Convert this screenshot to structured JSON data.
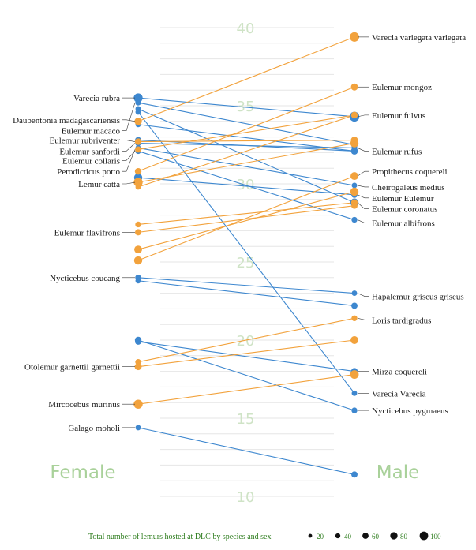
{
  "chart_data": {
    "type": "slope",
    "title": "Total number of lemurs hosted at DLC by species and sex",
    "xlabel": "",
    "ylabel": "",
    "ylim": [
      10,
      40
    ],
    "yticks": [
      10,
      15,
      20,
      25,
      30,
      35,
      40
    ],
    "categories": [
      "Female",
      "Male"
    ],
    "colors": {
      "blue": "#3d87cf",
      "orange": "#f2a23c"
    },
    "size_legend": [
      20,
      40,
      60,
      80,
      100
    ],
    "female_labels": [
      {
        "text": "Varecia rubra",
        "y": 35.5
      },
      {
        "text": "Daubentonia madagascariensis",
        "y": 34.1
      },
      {
        "text": "Eulemur macaco",
        "y": 33.4
      },
      {
        "text": "Eulemur rubriventer",
        "y": 32.8
      },
      {
        "text": "Eulemur sanfordi",
        "y": 32.1
      },
      {
        "text": "Eulemur collaris",
        "y": 31.5
      },
      {
        "text": "Perodicticus potto",
        "y": 30.8
      },
      {
        "text": "Lemur catta",
        "y": 30.0
      },
      {
        "text": "Eulemur flavifrons",
        "y": 26.9
      },
      {
        "text": "Nycticebus coucang",
        "y": 24.0
      },
      {
        "text": "Otolemur garnettii garnettii",
        "y": 18.3
      },
      {
        "text": "Mircocebus murinus",
        "y": 15.9
      },
      {
        "text": "Galago moholi",
        "y": 14.4
      }
    ],
    "male_labels": [
      {
        "text": "Varecia variegata variegata",
        "y": 39.4
      },
      {
        "text": "Eulemur mongoz",
        "y": 36.2
      },
      {
        "text": "Eulemur fulvus",
        "y": 34.4
      },
      {
        "text": "Eulemur rufus",
        "y": 32.1
      },
      {
        "text": "Propithecus coquereli",
        "y": 30.8
      },
      {
        "text": "Cheirogaleus medius",
        "y": 29.8
      },
      {
        "text": "Eulemur Eulemur",
        "y": 29.1
      },
      {
        "text": "Eulemur coronatus",
        "y": 28.4
      },
      {
        "text": "Eulemur albifrons",
        "y": 27.5
      },
      {
        "text": "Hapalemur griseus griseus",
        "y": 22.8
      },
      {
        "text": "Loris tardigradus",
        "y": 21.3
      },
      {
        "text": "Mirza coquereli",
        "y": 18.0
      },
      {
        "text": "Varecia Varecia",
        "y": 16.6
      },
      {
        "text": "Nycticebus pygmaeus",
        "y": 15.5
      }
    ],
    "series": [
      {
        "color": "blue",
        "female": 35.5,
        "male": 34.3,
        "fsize": 70,
        "msize": 80
      },
      {
        "color": "blue",
        "female": 35.2,
        "male": 32.5,
        "fsize": 30,
        "msize": 40
      },
      {
        "color": "blue",
        "female": 34.8,
        "male": 28.8,
        "fsize": 25,
        "msize": 60
      },
      {
        "color": "blue",
        "female": 34.6,
        "male": 16.6,
        "fsize": 25,
        "msize": 25
      },
      {
        "color": "blue",
        "female": 33.8,
        "male": 32.1,
        "fsize": 25,
        "msize": 35
      },
      {
        "color": "blue",
        "female": 32.8,
        "male": 32.1,
        "fsize": 35,
        "msize": 45
      },
      {
        "color": "blue",
        "female": 32.6,
        "male": 32.3,
        "fsize": 30,
        "msize": 30
      },
      {
        "color": "blue",
        "female": 32.3,
        "male": 29.9,
        "fsize": 25,
        "msize": 25
      },
      {
        "color": "blue",
        "female": 32.1,
        "male": 27.7,
        "fsize": 30,
        "msize": 30
      },
      {
        "color": "blue",
        "female": 30.4,
        "male": 29.3,
        "fsize": 60,
        "msize": 35
      },
      {
        "color": "blue",
        "female": 24.0,
        "male": 23.0,
        "fsize": 30,
        "msize": 25
      },
      {
        "color": "blue",
        "female": 23.8,
        "male": 22.2,
        "fsize": 25,
        "msize": 35
      },
      {
        "color": "blue",
        "female": 20.0,
        "male": 15.5,
        "fsize": 40,
        "msize": 30
      },
      {
        "color": "blue",
        "female": 19.9,
        "male": 18.0,
        "fsize": 35,
        "msize": 40
      },
      {
        "color": "blue",
        "female": 14.4,
        "male": 11.4,
        "fsize": 25,
        "msize": 35
      },
      {
        "color": "orange",
        "female": 34.0,
        "male": 39.4,
        "fsize": 50,
        "msize": 75
      },
      {
        "color": "orange",
        "female": 32.7,
        "male": 32.8,
        "fsize": 40,
        "msize": 45
      },
      {
        "color": "orange",
        "female": 32.2,
        "male": 34.4,
        "fsize": 35,
        "msize": 40
      },
      {
        "color": "orange",
        "female": 30.8,
        "male": 36.2,
        "fsize": 40,
        "msize": 45
      },
      {
        "color": "orange",
        "female": 30.1,
        "male": 32.6,
        "fsize": 70,
        "msize": 60
      },
      {
        "color": "orange",
        "female": 29.8,
        "male": 34.4,
        "fsize": 25,
        "msize": 30
      },
      {
        "color": "orange",
        "female": 27.4,
        "male": 28.8,
        "fsize": 30,
        "msize": 40
      },
      {
        "color": "orange",
        "female": 26.9,
        "male": 28.6,
        "fsize": 35,
        "msize": 35
      },
      {
        "color": "orange",
        "female": 25.8,
        "male": 29.5,
        "fsize": 55,
        "msize": 60
      },
      {
        "color": "orange",
        "female": 25.1,
        "male": 30.5,
        "fsize": 60,
        "msize": 55
      },
      {
        "color": "orange",
        "female": 18.6,
        "male": 21.4,
        "fsize": 30,
        "msize": 30
      },
      {
        "color": "orange",
        "female": 18.3,
        "male": 20.0,
        "fsize": 45,
        "msize": 55
      },
      {
        "color": "orange",
        "female": 15.9,
        "male": 17.8,
        "fsize": 70,
        "msize": 65
      }
    ]
  }
}
